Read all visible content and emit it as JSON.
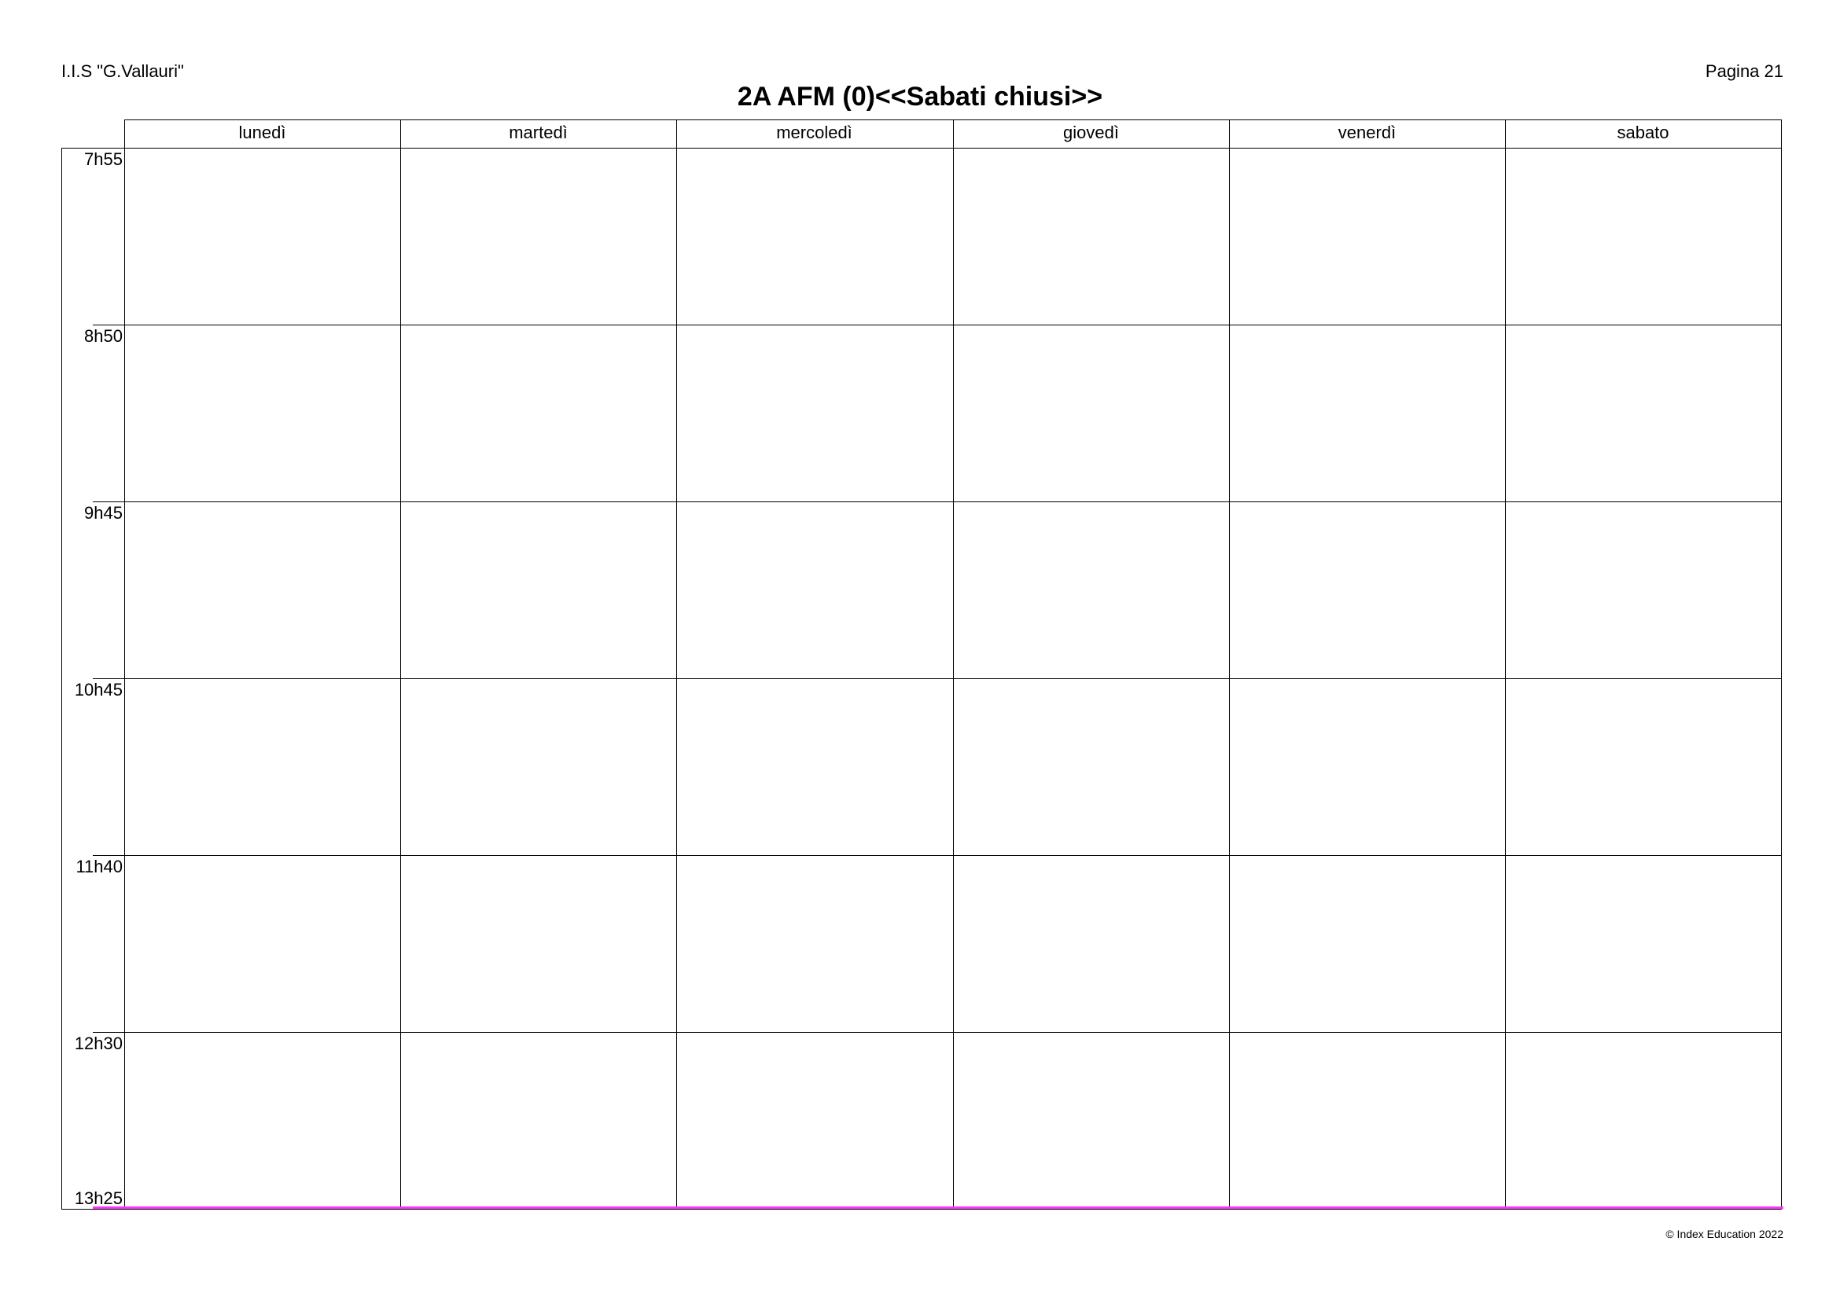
{
  "header": {
    "school": "I.I.S \"G.Vallauri\"",
    "page": "Pagina 21",
    "title": "2A AFM (0)<<Sabati chiusi>>"
  },
  "days": [
    "lunedì",
    "martedì",
    "mercoledì",
    "giovedì",
    "venerdì",
    "sabato"
  ],
  "times": [
    "7h55",
    "8h50",
    "9h45",
    "10h45",
    "11h40",
    "12h30",
    "13h25"
  ],
  "footer": {
    "copyright": "© Index Education 2022"
  },
  "colors": {
    "current_time_line": "#ff33ff",
    "grid": "#000000"
  }
}
